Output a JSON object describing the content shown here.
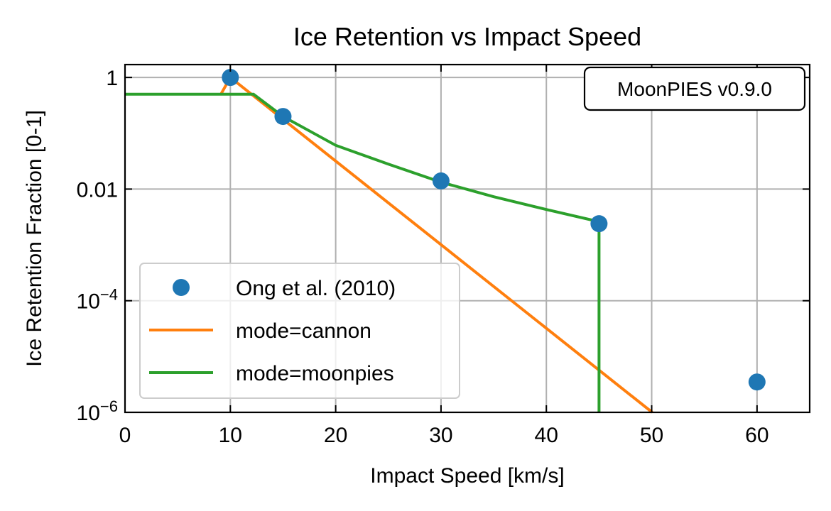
{
  "chart_data": {
    "type": "line",
    "title": "Ice Retention vs Impact Speed",
    "xlabel": "Impact Speed [km/s]",
    "ylabel": "Ice Retention Fraction [0-1]",
    "xlim": [
      0,
      65
    ],
    "ylim": [
      1e-06,
      1.7
    ],
    "yscale": "log",
    "grid": true,
    "legend_placement": "lower-left",
    "annotation": "MoonPIES v0.9.0",
    "x_ticks": [
      {
        "value": 0,
        "label": "0"
      },
      {
        "value": 10,
        "label": "10"
      },
      {
        "value": 20,
        "label": "20"
      },
      {
        "value": 30,
        "label": "30"
      },
      {
        "value": 40,
        "label": "40"
      },
      {
        "value": 50,
        "label": "50"
      },
      {
        "value": 60,
        "label": "60"
      }
    ],
    "y_ticks": [
      {
        "value": 1,
        "label": "1",
        "base": "",
        "exp": ""
      },
      {
        "value": 0.01,
        "label": "0.01",
        "base": "",
        "exp": ""
      },
      {
        "value": 0.0001,
        "label": "",
        "base": "10",
        "exp": "−4"
      },
      {
        "value": 1e-06,
        "label": "",
        "base": "10",
        "exp": "−6"
      }
    ],
    "series": [
      {
        "name": "Ong et al. (2010)",
        "kind": "scatter",
        "color": "#1f77b4",
        "x": [
          10,
          15,
          30,
          45,
          60
        ],
        "y": [
          1.0,
          0.2,
          0.014,
          0.0024,
          3.5e-06
        ]
      },
      {
        "name": "mode=cannon",
        "kind": "line",
        "color": "#ff7f0e",
        "x": [
          9.1,
          10,
          50.05
        ],
        "y": [
          0.5,
          1.0,
          1e-06
        ]
      },
      {
        "name": "mode=moonpies",
        "kind": "line",
        "color": "#2ca02c",
        "x": [
          0,
          12.2,
          15,
          20,
          25,
          30,
          35,
          40,
          45,
          45,
          45
        ],
        "y": [
          0.5,
          0.5,
          0.2,
          0.061,
          0.028,
          0.0133,
          0.0073,
          0.0043,
          0.0026,
          0.0026,
          1e-06
        ]
      }
    ]
  }
}
